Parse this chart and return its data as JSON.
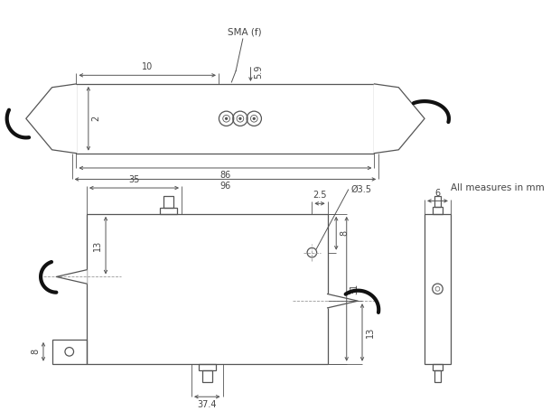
{
  "bg_color": "#ffffff",
  "line_color": "#555555",
  "dim_color": "#555555",
  "text_color": "#444444",
  "note_text": "All measures in mm",
  "note_fontsize": 7.5
}
